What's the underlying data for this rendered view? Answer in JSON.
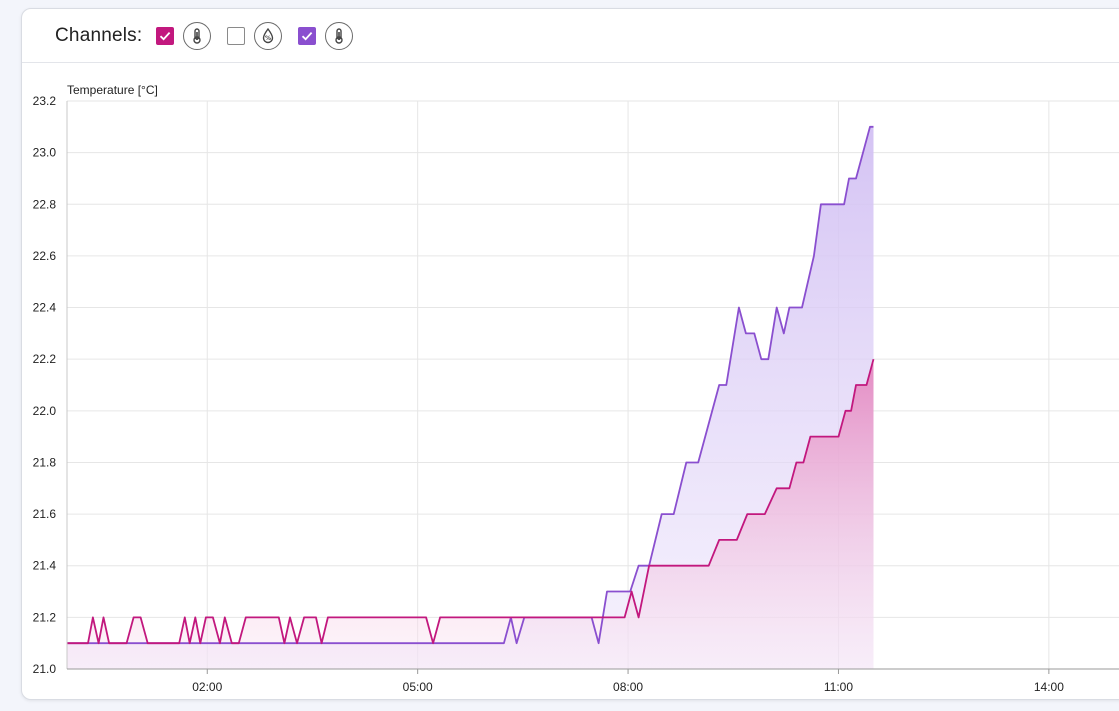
{
  "toolbar": {
    "label": "Channels:",
    "channels": [
      {
        "checked": true,
        "color": "#c2187e",
        "icon": "thermometer-icon"
      },
      {
        "checked": false,
        "color": "#8a8a8a",
        "icon": "humidity-icon"
      },
      {
        "checked": true,
        "color": "#8a4fcf",
        "icon": "thermometer-icon"
      }
    ]
  },
  "chart_data": {
    "type": "area",
    "ylabel": "Temperature [°C]",
    "ylim": [
      21.0,
      23.2
    ],
    "yticks": [
      "21.0",
      "21.2",
      "21.4",
      "21.6",
      "21.8",
      "22.0",
      "22.2",
      "22.4",
      "22.6",
      "22.8",
      "23.0",
      "23.2"
    ],
    "xticks": [
      "02:00",
      "05:00",
      "08:00",
      "11:00",
      "14:00"
    ],
    "xtick_hours": [
      2,
      5,
      8,
      11,
      14
    ],
    "xlim_hours": [
      0.0,
      15.0
    ],
    "grid": true,
    "series": [
      {
        "color": "#8a4fcf",
        "fill": "#d6c6f4",
        "points": [
          [
            0.0,
            21.1
          ],
          [
            6.23,
            21.1
          ],
          [
            6.33,
            21.2
          ],
          [
            6.41,
            21.1
          ],
          [
            6.52,
            21.2
          ],
          [
            7.48,
            21.2
          ],
          [
            7.58,
            21.1
          ],
          [
            7.7,
            21.3
          ],
          [
            8.03,
            21.3
          ],
          [
            8.15,
            21.4
          ],
          [
            8.3,
            21.4
          ],
          [
            8.48,
            21.6
          ],
          [
            8.65,
            21.6
          ],
          [
            8.83,
            21.8
          ],
          [
            9.0,
            21.8
          ],
          [
            9.3,
            22.1
          ],
          [
            9.4,
            22.1
          ],
          [
            9.58,
            22.4
          ],
          [
            9.68,
            22.3
          ],
          [
            9.8,
            22.3
          ],
          [
            9.9,
            22.2
          ],
          [
            10.0,
            22.2
          ],
          [
            10.12,
            22.4
          ],
          [
            10.22,
            22.3
          ],
          [
            10.3,
            22.4
          ],
          [
            10.48,
            22.4
          ],
          [
            10.65,
            22.6
          ],
          [
            10.75,
            22.8
          ],
          [
            11.08,
            22.8
          ],
          [
            11.15,
            22.9
          ],
          [
            11.25,
            22.9
          ],
          [
            11.45,
            23.1
          ],
          [
            11.5,
            23.1
          ]
        ]
      },
      {
        "color": "#c2187e",
        "fill": "#e88fc6",
        "points": [
          [
            0.0,
            21.1
          ],
          [
            0.3,
            21.1
          ],
          [
            0.37,
            21.2
          ],
          [
            0.45,
            21.1
          ],
          [
            0.52,
            21.2
          ],
          [
            0.6,
            21.1
          ],
          [
            0.85,
            21.1
          ],
          [
            0.95,
            21.2
          ],
          [
            1.05,
            21.2
          ],
          [
            1.15,
            21.1
          ],
          [
            1.6,
            21.1
          ],
          [
            1.68,
            21.2
          ],
          [
            1.75,
            21.1
          ],
          [
            1.83,
            21.2
          ],
          [
            1.9,
            21.1
          ],
          [
            1.98,
            21.2
          ],
          [
            2.08,
            21.2
          ],
          [
            2.18,
            21.1
          ],
          [
            2.25,
            21.2
          ],
          [
            2.35,
            21.1
          ],
          [
            2.45,
            21.1
          ],
          [
            2.55,
            21.2
          ],
          [
            3.02,
            21.2
          ],
          [
            3.1,
            21.1
          ],
          [
            3.18,
            21.2
          ],
          [
            3.28,
            21.1
          ],
          [
            3.38,
            21.2
          ],
          [
            3.55,
            21.2
          ],
          [
            3.63,
            21.1
          ],
          [
            3.72,
            21.2
          ],
          [
            5.12,
            21.2
          ],
          [
            5.22,
            21.1
          ],
          [
            5.32,
            21.2
          ],
          [
            7.95,
            21.2
          ],
          [
            8.05,
            21.3
          ],
          [
            8.15,
            21.2
          ],
          [
            8.3,
            21.4
          ],
          [
            9.15,
            21.4
          ],
          [
            9.3,
            21.5
          ],
          [
            9.55,
            21.5
          ],
          [
            9.7,
            21.6
          ],
          [
            9.95,
            21.6
          ],
          [
            10.12,
            21.7
          ],
          [
            10.3,
            21.7
          ],
          [
            10.4,
            21.8
          ],
          [
            10.5,
            21.8
          ],
          [
            10.6,
            21.9
          ],
          [
            11.0,
            21.9
          ],
          [
            11.1,
            22.0
          ],
          [
            11.18,
            22.0
          ],
          [
            11.25,
            22.1
          ],
          [
            11.4,
            22.1
          ],
          [
            11.5,
            22.2
          ]
        ]
      }
    ]
  }
}
